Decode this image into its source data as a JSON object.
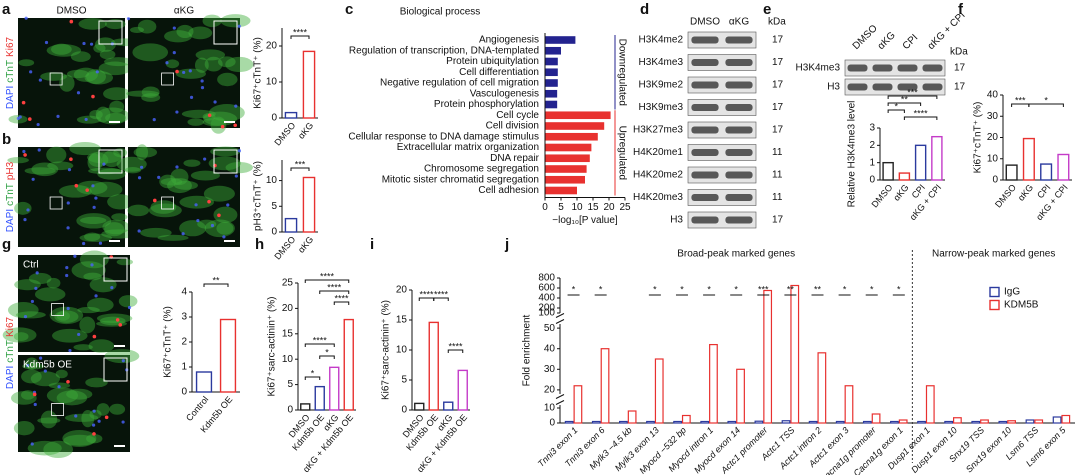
{
  "chart_data": [
    {
      "panel": "a",
      "type": "bar",
      "ylabel": "Ki67⁺cTnT⁺ (%)",
      "categories": [
        "DMSO",
        "αKG"
      ],
      "values": [
        1.5,
        18.5
      ],
      "colors": [
        "#2b3a9e",
        "#e8312f"
      ],
      "ylim": [
        0,
        25
      ],
      "yticks": [
        0,
        10,
        20
      ],
      "significance": [
        "****"
      ]
    },
    {
      "panel": "b",
      "type": "bar",
      "ylabel": "pH3⁺cTnT⁺ (%)",
      "categories": [
        "DMSO",
        "αKG"
      ],
      "values": [
        2.6,
        10.6
      ],
      "colors": [
        "#2b3a9e",
        "#e8312f"
      ],
      "ylim": [
        0,
        14
      ],
      "yticks": [
        0,
        5,
        10
      ],
      "significance": [
        "***"
      ]
    },
    {
      "panel": "c",
      "type": "barh",
      "title": "Biological process",
      "xlabel": "−log₁₀[P value]",
      "xlim": [
        0,
        25
      ],
      "xticks": [
        0,
        5,
        10,
        15,
        20,
        25
      ],
      "groups": [
        {
          "name": "Downregulated",
          "color": "#23238f",
          "categories": [
            "Angiogenesis",
            "Regulation of transcription, DNA-templated",
            "Protein ubiquitylation",
            "Cell differentiation",
            "Negative regulation of cell migration",
            "Vasculogenesis",
            "Protein phosphorylation"
          ],
          "values": [
            9.5,
            5,
            4,
            4,
            4,
            3.8,
            3.8
          ]
        },
        {
          "name": "Upregulated",
          "color": "#e8312f",
          "categories": [
            "Cell cycle",
            "Cell division",
            "Cellular response to DNA damage stimulus",
            "Extracellular matrix organization",
            "DNA repair",
            "Chromosome segregation",
            "Mitotic sister chromatid segregation",
            "Cell adhesion"
          ],
          "values": [
            20.5,
            18.5,
            16.5,
            14.5,
            14,
            13,
            12.5,
            10
          ]
        }
      ]
    },
    {
      "panel": "e",
      "type": "bar",
      "ylabel": "Relative H3K4me3 level",
      "categories": [
        "DMSO",
        "αKG",
        "CPI",
        "αKG + CPI"
      ],
      "values": [
        1.0,
        0.4,
        2.0,
        2.5
      ],
      "colors": [
        "#222222",
        "#e8312f",
        "#2b3a9e",
        "#c43bc8"
      ],
      "ylim": [
        0,
        3
      ],
      "yticks": [
        0,
        1,
        2,
        3
      ],
      "significance": [
        "***",
        "**",
        "*",
        "****"
      ]
    },
    {
      "panel": "f",
      "type": "bar",
      "ylabel": "Ki67⁺cTnT⁺ (%)",
      "categories": [
        "DMSO",
        "αKG",
        "CPI",
        "αKG + CPI"
      ],
      "values": [
        7,
        19.5,
        7.5,
        12
      ],
      "colors": [
        "#222222",
        "#e8312f",
        "#2b3a9e",
        "#c43bc8"
      ],
      "ylim": [
        0,
        40
      ],
      "yticks": [
        0,
        10,
        20,
        30,
        40
      ],
      "significance": [
        "***",
        "*"
      ]
    },
    {
      "panel": "g",
      "type": "bar",
      "ylabel": "Ki67⁺cTnT⁺ (%)",
      "categories": [
        "Control",
        "Kdm5b OE"
      ],
      "values": [
        0.8,
        2.9
      ],
      "colors": [
        "#2b3a9e",
        "#e8312f"
      ],
      "ylim": [
        0,
        4
      ],
      "yticks": [
        0,
        1,
        2,
        3,
        4
      ],
      "significance": [
        "**"
      ]
    },
    {
      "panel": "h",
      "type": "bar",
      "ylabel": "Ki67⁺sarc-actinin⁺ (%)",
      "categories": [
        "DMSO",
        "Kdm5b OE",
        "αKG",
        "αKG + Kdm5b OE"
      ],
      "values": [
        1.2,
        4.6,
        8.4,
        17.8
      ],
      "colors": [
        "#222222",
        "#2b3a9e",
        "#c43bc8",
        "#e8312f"
      ],
      "ylim": [
        0,
        25
      ],
      "yticks": [
        0,
        5,
        10,
        15,
        20,
        25
      ],
      "significance": [
        "****",
        "****",
        "****",
        "****",
        "*",
        "*"
      ]
    },
    {
      "panel": "i",
      "type": "bar",
      "ylabel": "Ki67⁺sarc-actinin⁺ (%)",
      "categories": [
        "DMSO",
        "Kdm5b OE",
        "αKG",
        "αKG + Kdm5b OE"
      ],
      "values": [
        1.1,
        14.6,
        1.3,
        6.6
      ],
      "colors": [
        "#222222",
        "#e8312f",
        "#2b3a9e",
        "#c43bc8"
      ],
      "ylim": [
        0,
        20
      ],
      "yticks": [
        0,
        5,
        10,
        15,
        20
      ],
      "significance": [
        "****",
        "****",
        "****"
      ]
    },
    {
      "panel": "j",
      "type": "grouped_bar",
      "ylabel": "Fold enrichment",
      "ylim": [
        0,
        800
      ],
      "ybreaks": [
        [
          0,
          12
        ],
        [
          18,
          52
        ],
        [
          100,
          800
        ]
      ],
      "yticks": [
        0,
        10,
        20,
        30,
        40,
        50,
        100,
        200,
        400,
        600,
        800
      ],
      "legend": "top-right",
      "sections": [
        {
          "label": "Broad-peak marked genes",
          "categories": [
            "Tnni3 exon 1",
            "Tnni3 exon 6",
            "Mylk3 −4.5 kb",
            "Mylk3 exon 13",
            "Myocd −532 bp",
            "Myocd intron 1",
            "Myocd exon 14",
            "Actc1 promoter",
            "Actc1 TSS",
            "Actc1 intron 2",
            "Actc1 exon 3",
            "Cacna1g promoter",
            "Cacna1g exon 1"
          ]
        },
        {
          "label": "Narrow-peak marked genes",
          "categories": [
            "Dusp1 exon 1",
            "Dusp1 exon 10",
            "Snx19 TSS",
            "Snx19 exon 10",
            "Lsm6 TSS",
            "Lsm6 exon 5"
          ]
        }
      ],
      "series": [
        {
          "name": "IgG",
          "color": "#2b3a9e",
          "values": [
            1,
            1,
            1,
            1,
            1,
            1,
            1,
            1.2,
            1.5,
            1,
            1,
            1,
            1,
            1,
            1,
            1,
            1,
            2,
            4
          ]
        },
        {
          "name": "KDM5B",
          "color": "#e8312f",
          "values": [
            22,
            40,
            8,
            35,
            5,
            42,
            30,
            550,
            650,
            38,
            22,
            6,
            2,
            22,
            3.5,
            2,
            1.5,
            2,
            5
          ]
        }
      ],
      "significance": [
        "*",
        "*",
        null,
        "*",
        "*",
        "*",
        "*",
        "***",
        "**",
        "**",
        "*",
        "*",
        "*",
        null,
        null,
        null,
        null,
        null,
        null
      ]
    }
  ],
  "images": [
    {
      "labels": [
        "DMSO",
        "αKG"
      ],
      "channels": [
        {
          "text": "DAPI",
          "color": "#3050ff"
        },
        {
          "text": "cTnT",
          "color": "#2ea043"
        },
        {
          "text": "Ki67",
          "color": "#e8312f"
        }
      ]
    },
    {
      "labels": [],
      "channels": [
        {
          "text": "DAPI",
          "color": "#3050ff"
        },
        {
          "text": "cTnT",
          "color": "#2ea043"
        },
        {
          "text": "pH3",
          "color": "#e8312f"
        }
      ]
    },
    {
      "labels": [
        "Ctrl",
        "Kdm5b OE"
      ],
      "channels": [
        {
          "text": "DAPI",
          "color": "#3050ff"
        },
        {
          "text": "cTnT",
          "color": "#2ea043"
        },
        {
          "text": "Ki67",
          "color": "#e8312f"
        }
      ]
    }
  ],
  "blots": [
    {
      "panel": "d",
      "columns": [
        "DMSO",
        "αKG"
      ],
      "unit": "kDa",
      "rows": [
        {
          "name": "H3K4me2",
          "kda": 17
        },
        {
          "name": "H3K4me3",
          "kda": 17
        },
        {
          "name": "H3K9me2",
          "kda": 17
        },
        {
          "name": "H3K9me3",
          "kda": 17
        },
        {
          "name": "H3K27me3",
          "kda": 17
        },
        {
          "name": "H4K20me1",
          "kda": 11
        },
        {
          "name": "H4K20me2",
          "kda": 11
        },
        {
          "name": "H4K20me3",
          "kda": 11
        },
        {
          "name": "H3",
          "kda": 17
        }
      ]
    },
    {
      "columns": [
        "DMSO",
        "αKG",
        "CPI",
        "αKG + CPI"
      ],
      "unit": "kDa",
      "rows": [
        {
          "name": "H3K4me3",
          "kda": 17
        },
        {
          "name": "H3",
          "kda": 17
        }
      ]
    }
  ]
}
